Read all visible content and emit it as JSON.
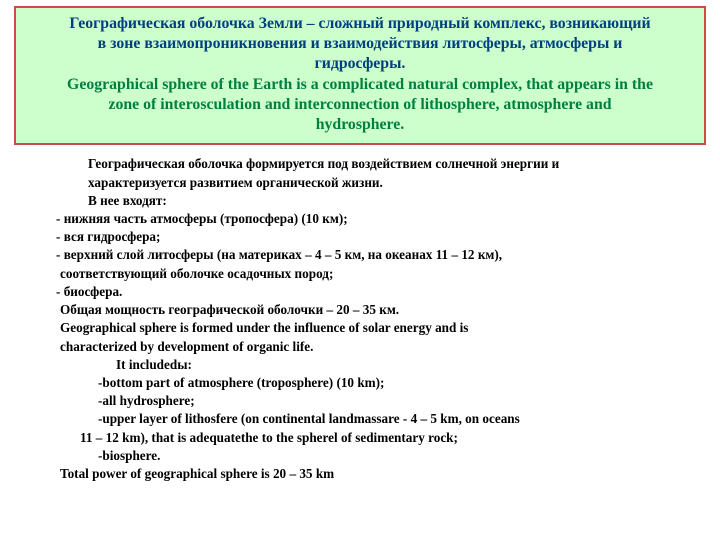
{
  "colors": {
    "top_bg": "#ccffcc",
    "top_border": "#d04848",
    "ru_text": "#004080",
    "en_text": "#008040",
    "body_text": "#000000",
    "page_bg": "#ffffff"
  },
  "top": {
    "ru1": "Географическая оболочка Земли – сложный природный комплекс, возникающий",
    "ru2": "в зоне взаимопроникновения и взаимодействия литосферы, атмосферы и",
    "ru3": "гидросферы.",
    "en1": "Geographical sphere of the Earth is a complicated natural complex, that appears in the",
    "en2": "zone of interosculation and interconnection of lithosphere, atmosphere and",
    "en3": "hydrosphere."
  },
  "body": {
    "l01": "Географическая оболочка формируется под воздействием солнечной энергии и",
    "l02": "характеризуется развитием органической жизни.",
    "l03": "В нее входят:",
    "l04": "- нижняя часть атмосферы (тропосфера) (10 км);",
    "l05": "- вся гидросфера;",
    "l06": "- верхний слой литосферы (на материках – 4 – 5 км, на океанах 11 – 12 км),",
    "l07": "соответствующий оболочке осадочных пород;",
    "l08": "- биосфера.",
    "l09": "Общая мощность географической оболочки –  20 – 35 км.",
    "l10": "Geographical sphere is formed under the influence of solar energy and is",
    "l11": "characterized by development of organic life.",
    "l12": "It includedы:",
    "l13": "-bottom part of atmosphere (troposphere) (10 km);",
    "l14": "-all hydrosphere;",
    "l15": "-upper layer of lithosfere (on continental landmassare - 4 – 5 km, on oceans",
    "l16": "11 – 12 km), that is adequatethe to the spherel of sedimentary rock;",
    "l17": "-biosphere.",
    "l18": "Total power of geographical sphere is  20 – 35 km"
  }
}
